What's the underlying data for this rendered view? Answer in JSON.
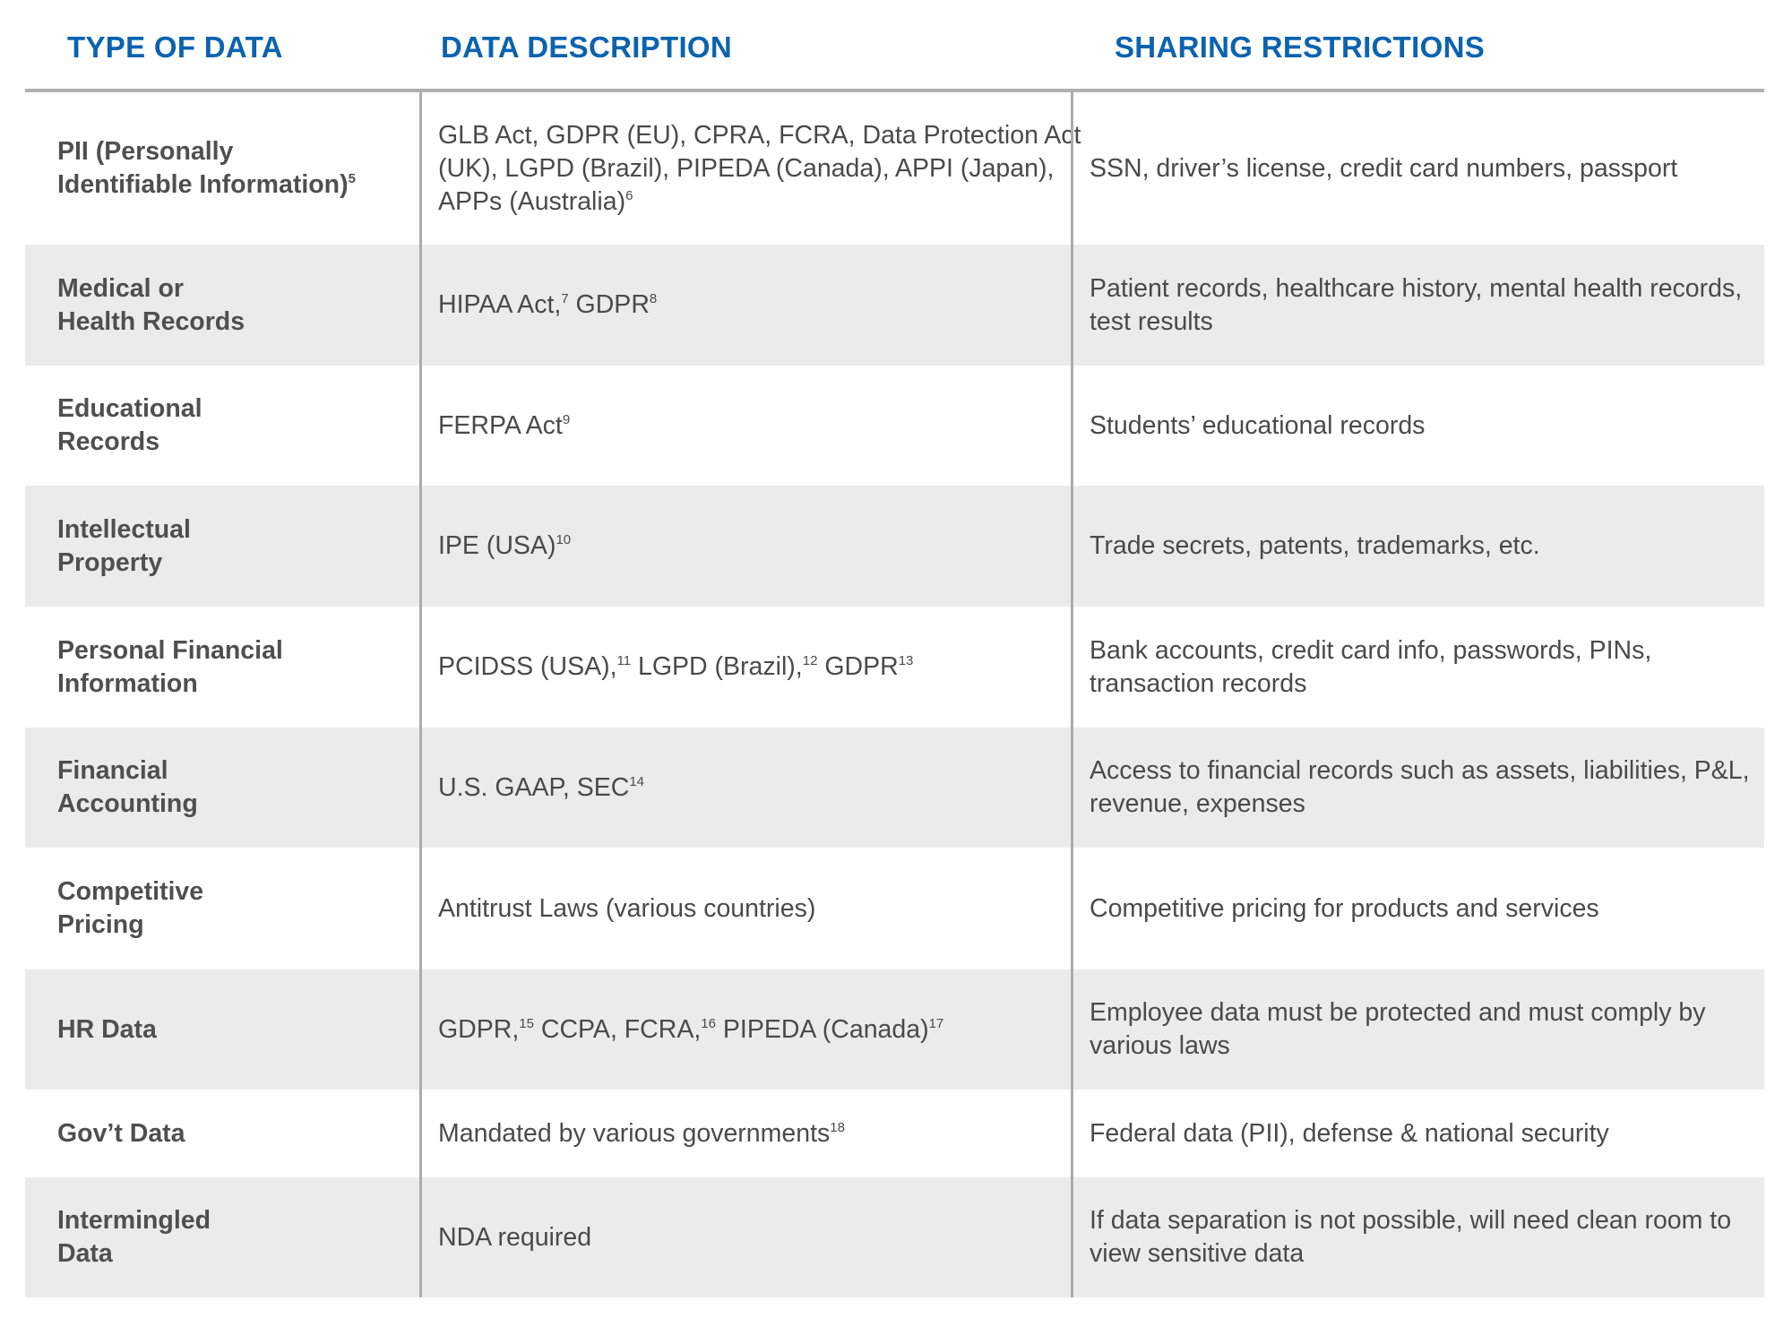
{
  "headers": {
    "type": "TYPE OF DATA",
    "description": "DATA DESCRIPTION",
    "restrictions": "SHARING RESTRICTIONS"
  },
  "colors": {
    "header": "#0b63b0",
    "alt_row": "#ebebeb",
    "text": "#4a4a4a",
    "rule": "#ababab"
  },
  "rows": [
    {
      "type": [
        {
          "t": "PII (Personally"
        },
        {
          "br": true
        },
        {
          "t": "Identifiable Information)"
        },
        {
          "sup": "5"
        }
      ],
      "description": [
        {
          "t": "GLB Act, GDPR (EU), CPRA, FCRA, Data Protection Act (UK), LGPD (Brazil), PIPEDA (Canada), APPI (Japan), APPs (Australia)"
        },
        {
          "sup": "6"
        }
      ],
      "restrictions": [
        {
          "t": "SSN, driver’s license, credit card numbers, passport"
        }
      ]
    },
    {
      "type": [
        {
          "t": "Medical or"
        },
        {
          "br": true
        },
        {
          "t": "Health Records"
        }
      ],
      "description": [
        {
          "t": "HIPAA Act,"
        },
        {
          "sup": "7"
        },
        {
          "t": " GDPR"
        },
        {
          "sup": "8"
        }
      ],
      "restrictions": [
        {
          "t": "Patient records, healthcare history, mental health records, test results"
        }
      ]
    },
    {
      "type": [
        {
          "t": "Educational"
        },
        {
          "br": true
        },
        {
          "t": "Records"
        }
      ],
      "description": [
        {
          "t": "FERPA Act"
        },
        {
          "sup": "9"
        }
      ],
      "restrictions": [
        {
          "t": "Students’ educational records"
        }
      ]
    },
    {
      "type": [
        {
          "t": "Intellectual"
        },
        {
          "br": true
        },
        {
          "t": "Property"
        }
      ],
      "description": [
        {
          "t": "IPE (USA)"
        },
        {
          "sup": "10"
        }
      ],
      "restrictions": [
        {
          "t": "Trade secrets, patents, trademarks, etc."
        }
      ]
    },
    {
      "type": [
        {
          "t": "Personal Financial"
        },
        {
          "br": true
        },
        {
          "t": "Information"
        }
      ],
      "description": [
        {
          "t": "PCIDSS (USA),"
        },
        {
          "sup": "11"
        },
        {
          "t": "  LGPD (Brazil),"
        },
        {
          "sup": "12"
        },
        {
          "t": " GDPR"
        },
        {
          "sup": "13"
        }
      ],
      "restrictions": [
        {
          "t": "Bank accounts, credit card info, passwords, PINs, transaction records"
        }
      ]
    },
    {
      "type": [
        {
          "t": "Financial"
        },
        {
          "br": true
        },
        {
          "t": "Accounting"
        }
      ],
      "description": [
        {
          "t": "U.S. GAAP, SEC"
        },
        {
          "sup": "14"
        }
      ],
      "restrictions": [
        {
          "t": "Access to financial records such as assets, liabilities, P&L, revenue, expenses"
        }
      ]
    },
    {
      "type": [
        {
          "t": "Competitive"
        },
        {
          "br": true
        },
        {
          "t": "Pricing"
        }
      ],
      "description": [
        {
          "t": "Antitrust Laws (various countries)"
        }
      ],
      "restrictions": [
        {
          "t": "Competitive pricing for products and services"
        }
      ]
    },
    {
      "type": [
        {
          "t": "HR Data"
        }
      ],
      "description": [
        {
          "t": "GDPR,"
        },
        {
          "sup": "15"
        },
        {
          "t": " CCPA, FCRA,"
        },
        {
          "sup": "16"
        },
        {
          "t": " PIPEDA (Canada)"
        },
        {
          "sup": "17"
        }
      ],
      "restrictions": [
        {
          "t": "Employee data must be protected and must comply by various laws"
        }
      ]
    },
    {
      "type": [
        {
          "t": "Gov’t Data"
        }
      ],
      "description": [
        {
          "t": "Mandated by various governments"
        },
        {
          "sup": "18"
        }
      ],
      "restrictions": [
        {
          "t": "Federal data (PII), defense & national security"
        }
      ]
    },
    {
      "type": [
        {
          "t": "Intermingled"
        },
        {
          "br": true
        },
        {
          "t": "Data"
        }
      ],
      "description": [
        {
          "t": "NDA required"
        }
      ],
      "restrictions": [
        {
          "t": "If data separation is not possible, will need clean room to view sensitive data"
        }
      ]
    }
  ]
}
